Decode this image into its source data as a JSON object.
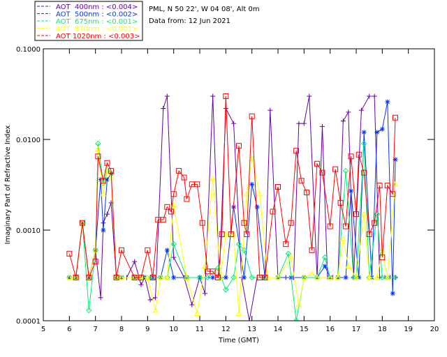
{
  "chart_data": {
    "type": "line",
    "header": {
      "location": "PML, N 50 22', W 04 08', Alt 0m",
      "date": "Data from: 12 Jun 2021"
    },
    "xlabel": "Time (GMT)",
    "ylabel": "Imaginary Part of Refractive Index",
    "xlim": [
      5,
      20
    ],
    "ylim": [
      0.0001,
      0.1
    ],
    "yscale": "log",
    "x_ticks": [
      "5",
      "6",
      "7",
      "8",
      "9",
      "10",
      "11",
      "12",
      "13",
      "14",
      "15",
      "16",
      "17",
      "18",
      "19",
      "20"
    ],
    "y_ticks": [
      "0.0001",
      "0.0010",
      "0.0100",
      "0.1000"
    ],
    "legend_position": "top-left",
    "series": [
      {
        "name": "AOT  400nm : <0.004>",
        "color": "#6600aa",
        "marker": "plus",
        "x": [
          6.0,
          6.25,
          6.5,
          6.75,
          7.0,
          7.2,
          7.3,
          7.45,
          7.6,
          7.8,
          8.0,
          8.2,
          8.5,
          8.75,
          8.9,
          9.1,
          9.3,
          9.6,
          9.75,
          10.0,
          10.4,
          10.7,
          11.0,
          11.2,
          11.5,
          11.75,
          12.0,
          12.3,
          12.6,
          12.9,
          13.2,
          13.5,
          13.7,
          14.0,
          14.3,
          14.6,
          14.8,
          15.0,
          15.2,
          15.5,
          15.7,
          15.9,
          16.1,
          16.3,
          16.5,
          16.7,
          16.9,
          17.2,
          17.5,
          17.7,
          17.9,
          18.1,
          18.3,
          18.5
        ],
        "y": [
          0.0003,
          0.0003,
          0.0012,
          0.0003,
          0.0006,
          0.00018,
          0.0012,
          0.0015,
          0.002,
          0.0003,
          0.0003,
          0.0003,
          0.00045,
          0.00025,
          0.0003,
          0.00017,
          0.00018,
          0.022,
          0.03,
          0.0005,
          0.0003,
          0.00015,
          0.0003,
          0.0002,
          0.03,
          0.0003,
          0.022,
          0.015,
          0.0003,
          0.0001,
          0.0003,
          0.0003,
          0.021,
          0.0003,
          0.0003,
          0.0003,
          0.015,
          0.015,
          0.03,
          0.0003,
          0.0139,
          0.0003,
          0.0003,
          0.0003,
          0.016,
          0.02,
          0.0003,
          0.021,
          0.03,
          0.03,
          0.0003,
          0.0003,
          0.0003,
          0.0003
        ]
      },
      {
        "name": "AOT  500nm : <0.002>",
        "color": "#0033ff",
        "marker": "asterisk",
        "x": [
          6.0,
          6.25,
          6.5,
          6.75,
          7.0,
          7.2,
          7.3,
          7.45,
          7.6,
          7.8,
          8.0,
          8.5,
          8.9,
          9.2,
          9.5,
          9.75,
          10.0,
          10.5,
          11.0,
          11.5,
          12.0,
          12.3,
          12.7,
          13.0,
          13.2,
          13.5,
          14.0,
          14.5,
          15.0,
          15.5,
          15.8,
          16.0,
          16.3,
          16.6,
          16.8,
          17.1,
          17.3,
          17.6,
          17.8,
          18.0,
          18.2,
          18.4,
          18.5
        ],
        "y": [
          0.0003,
          0.0003,
          0.0012,
          0.0003,
          0.0006,
          0.0036,
          0.001,
          0.0036,
          0.0042,
          0.0003,
          0.0003,
          0.0003,
          0.0003,
          0.0003,
          0.0003,
          0.0006,
          0.0003,
          0.0003,
          0.0003,
          0.0003,
          0.0003,
          0.0018,
          0.0003,
          0.0032,
          0.0018,
          0.0003,
          0.0003,
          0.0003,
          0.0003,
          0.0003,
          0.0004,
          0.0003,
          0.0003,
          0.0003,
          0.0027,
          0.0003,
          0.012,
          0.0003,
          0.012,
          0.013,
          0.026,
          0.0002,
          0.006
        ]
      },
      {
        "name": "AOT  675nm : <0.001>",
        "color": "#00ee77",
        "marker": "diamond",
        "x": [
          6.0,
          6.25,
          6.5,
          6.75,
          7.0,
          7.1,
          7.3,
          7.45,
          7.6,
          7.8,
          8.0,
          8.5,
          8.75,
          9.0,
          9.5,
          9.75,
          10.0,
          10.5,
          11.0,
          11.3,
          11.7,
          12.0,
          12.3,
          12.5,
          12.7,
          13.0,
          13.5,
          14.0,
          14.4,
          14.7,
          15.0,
          15.5,
          15.8,
          16.0,
          16.3,
          16.6,
          16.9,
          17.0,
          17.3,
          17.5,
          17.8,
          18.0,
          18.2,
          18.5
        ],
        "y": [
          0.0003,
          0.0003,
          0.0012,
          0.00013,
          0.0006,
          0.009,
          0.0033,
          0.0045,
          0.0042,
          0.0003,
          0.0003,
          0.0003,
          0.0003,
          0.0003,
          0.0003,
          0.0003,
          0.0007,
          0.0003,
          0.0003,
          0.0003,
          0.00038,
          0.00022,
          0.0003,
          0.0007,
          0.0006,
          0.0003,
          0.0003,
          0.0003,
          0.00055,
          0.0001,
          0.0003,
          0.0003,
          0.0005,
          0.0003,
          0.0003,
          0.0045,
          0.0003,
          0.0003,
          0.009,
          0.0003,
          0.0015,
          0.0003,
          0.0003,
          0.0003
        ]
      },
      {
        "name": "AOT  870nm : <0.001>",
        "color": "#ffff00",
        "marker": "triangle",
        "x": [
          6.0,
          6.25,
          6.5,
          6.75,
          7.0,
          7.1,
          7.3,
          7.45,
          7.6,
          7.8,
          8.0,
          8.5,
          8.75,
          9.0,
          9.3,
          9.5,
          9.75,
          10.0,
          10.5,
          10.9,
          11.2,
          11.5,
          11.8,
          12.0,
          12.3,
          12.5,
          12.8,
          13.0,
          13.3,
          13.6,
          14.0,
          14.5,
          14.8,
          15.0,
          15.3,
          15.5,
          16.0,
          16.3,
          16.5,
          16.7,
          17.0,
          17.3,
          17.5,
          17.8,
          18.0,
          18.2,
          18.5
        ],
        "y": [
          0.0003,
          0.0003,
          0.0012,
          0.0003,
          0.0006,
          0.0078,
          0.0025,
          0.0045,
          0.0038,
          0.0003,
          0.0003,
          0.0003,
          0.0003,
          0.0003,
          0.00013,
          0.0003,
          0.0003,
          0.0019,
          0.0003,
          0.00012,
          0.0004,
          0.0037,
          0.0003,
          0.0009,
          0.0009,
          0.00012,
          0.0025,
          0.0062,
          0.0025,
          0.0003,
          0.0003,
          0.0005,
          0.00015,
          0.0003,
          0.00033,
          0.0003,
          0.0003,
          0.0003,
          0.0008,
          0.0004,
          0.0003,
          0.0015,
          0.0003,
          0.0003,
          0.0006,
          0.0003,
          0.0032
        ]
      },
      {
        "name": "AOT 1020nm : <0.003>",
        "color": "#ff0000",
        "marker": "square",
        "x": [
          6.0,
          6.25,
          6.5,
          6.75,
          7.0,
          7.1,
          7.3,
          7.45,
          7.6,
          7.8,
          8.0,
          8.5,
          8.75,
          9.0,
          9.2,
          9.4,
          9.6,
          9.75,
          9.9,
          10.0,
          10.2,
          10.4,
          10.5,
          10.7,
          10.9,
          11.1,
          11.3,
          11.5,
          11.7,
          11.85,
          12.0,
          12.2,
          12.5,
          12.7,
          12.8,
          13.0,
          13.3,
          13.5,
          13.8,
          14.0,
          14.3,
          14.5,
          14.7,
          14.9,
          15.1,
          15.3,
          15.5,
          15.7,
          16.0,
          16.2,
          16.4,
          16.6,
          16.8,
          17.0,
          17.1,
          17.3,
          17.5,
          17.7,
          17.9,
          18.0,
          18.2,
          18.4,
          18.5
        ],
        "y": [
          0.00055,
          0.0003,
          0.0012,
          0.0003,
          0.00045,
          0.0065,
          0.0035,
          0.0055,
          0.0045,
          0.0003,
          0.0006,
          0.0003,
          0.0003,
          0.0006,
          0.0003,
          0.0013,
          0.0013,
          0.0018,
          0.0016,
          0.0025,
          0.0045,
          0.0038,
          0.0022,
          0.0032,
          0.0032,
          0.0012,
          0.00035,
          0.00035,
          0.0003,
          0.0009,
          0.03,
          0.0009,
          0.0085,
          0.0012,
          0.0009,
          0.018,
          0.0003,
          0.0003,
          0.0016,
          0.003,
          0.0007,
          0.0012,
          0.0075,
          0.0035,
          0.0026,
          0.0006,
          0.0054,
          0.0043,
          0.0011,
          0.0047,
          0.002,
          0.0011,
          0.0065,
          0.0015,
          0.0068,
          0.0043,
          0.0009,
          0.0012,
          0.0031,
          0.0005,
          0.0031,
          0.0025,
          0.0174
        ]
      }
    ]
  }
}
